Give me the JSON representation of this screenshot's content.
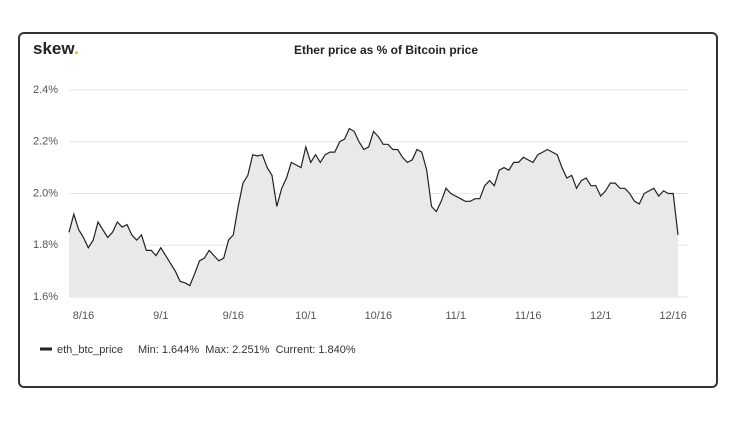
{
  "chart_data": {
    "type": "line",
    "brand": "skew",
    "brand_dot": ".",
    "title": "Ether price as % of Bitcoin price",
    "x": [
      "8/13",
      "8/14",
      "8/15",
      "8/16",
      "8/17",
      "8/18",
      "8/19",
      "8/20",
      "8/21",
      "8/22",
      "8/23",
      "8/24",
      "8/25",
      "8/26",
      "8/27",
      "8/28",
      "8/29",
      "8/30",
      "8/31",
      "9/1",
      "9/2",
      "9/3",
      "9/4",
      "9/5",
      "9/6",
      "9/7",
      "9/8",
      "9/9",
      "9/10",
      "9/11",
      "9/12",
      "9/13",
      "9/14",
      "9/15",
      "9/16",
      "9/17",
      "9/18",
      "9/19",
      "9/20",
      "9/21",
      "9/22",
      "9/23",
      "9/24",
      "9/25",
      "9/26",
      "9/27",
      "9/28",
      "9/29",
      "9/30",
      "10/1",
      "10/2",
      "10/3",
      "10/4",
      "10/5",
      "10/6",
      "10/7",
      "10/8",
      "10/9",
      "10/10",
      "10/11",
      "10/12",
      "10/13",
      "10/14",
      "10/15",
      "10/16",
      "10/17",
      "10/18",
      "10/19",
      "10/20",
      "10/21",
      "10/22",
      "10/23",
      "10/24",
      "10/25",
      "10/26",
      "10/27",
      "10/28",
      "10/29",
      "10/30",
      "10/31",
      "11/1",
      "11/2",
      "11/3",
      "11/4",
      "11/5",
      "11/6",
      "11/7",
      "11/8",
      "11/9",
      "11/10",
      "11/11",
      "11/12",
      "11/13",
      "11/14",
      "11/15",
      "11/16",
      "11/17",
      "11/18",
      "11/19",
      "11/20",
      "11/21",
      "11/22",
      "11/23",
      "11/24",
      "11/25",
      "11/26",
      "11/27",
      "11/28",
      "11/29",
      "11/30",
      "12/1",
      "12/2",
      "12/3",
      "12/4",
      "12/5",
      "12/6",
      "12/7",
      "12/8",
      "12/9",
      "12/10",
      "12/11",
      "12/12",
      "12/13",
      "12/14",
      "12/15",
      "12/16",
      "12/17"
    ],
    "series": [
      {
        "name": "eth_btc_price",
        "color": "#222222",
        "fill": "#e9e9e9",
        "values": [
          1.85,
          1.92,
          1.86,
          1.83,
          1.79,
          1.82,
          1.89,
          1.86,
          1.83,
          1.85,
          1.89,
          1.87,
          1.88,
          1.84,
          1.82,
          1.84,
          1.78,
          1.78,
          1.76,
          1.79,
          1.76,
          1.73,
          1.7,
          1.66,
          1.655,
          1.644,
          1.69,
          1.74,
          1.75,
          1.78,
          1.76,
          1.74,
          1.75,
          1.82,
          1.84,
          1.95,
          2.04,
          2.07,
          2.15,
          2.145,
          2.15,
          2.1,
          2.07,
          1.95,
          2.02,
          2.06,
          2.12,
          2.11,
          2.1,
          2.18,
          2.12,
          2.15,
          2.12,
          2.15,
          2.16,
          2.16,
          2.2,
          2.21,
          2.251,
          2.24,
          2.2,
          2.17,
          2.18,
          2.24,
          2.22,
          2.19,
          2.19,
          2.17,
          2.17,
          2.14,
          2.12,
          2.13,
          2.17,
          2.16,
          2.09,
          1.95,
          1.93,
          1.97,
          2.02,
          2.0,
          1.99,
          1.98,
          1.97,
          1.97,
          1.98,
          1.98,
          2.03,
          2.05,
          2.03,
          2.09,
          2.1,
          2.09,
          2.12,
          2.12,
          2.14,
          2.13,
          2.12,
          2.15,
          2.16,
          2.17,
          2.16,
          2.15,
          2.1,
          2.06,
          2.07,
          2.02,
          2.05,
          2.06,
          2.03,
          2.03,
          1.99,
          2.01,
          2.04,
          2.04,
          2.02,
          2.02,
          2.0,
          1.97,
          1.96,
          2.0,
          2.01,
          2.02,
          1.99,
          2.01,
          2.0,
          2.0,
          1.84
        ]
      }
    ],
    "legend_stats": "Min: 1.644%  Max: 2.251%  Current: 1.840%",
    "ylim": [
      1.6,
      2.4
    ],
    "yticks": [
      {
        "value": 1.6,
        "label": "1.6%"
      },
      {
        "value": 1.8,
        "label": "1.8%"
      },
      {
        "value": 2.0,
        "label": "2.0%"
      },
      {
        "value": 2.2,
        "label": "2.2%"
      },
      {
        "value": 2.4,
        "label": "2.4%"
      }
    ],
    "xticks": [
      "8/16",
      "9/1",
      "9/16",
      "10/1",
      "10/16",
      "11/1",
      "11/16",
      "12/1",
      "12/16"
    ],
    "grid": true
  }
}
